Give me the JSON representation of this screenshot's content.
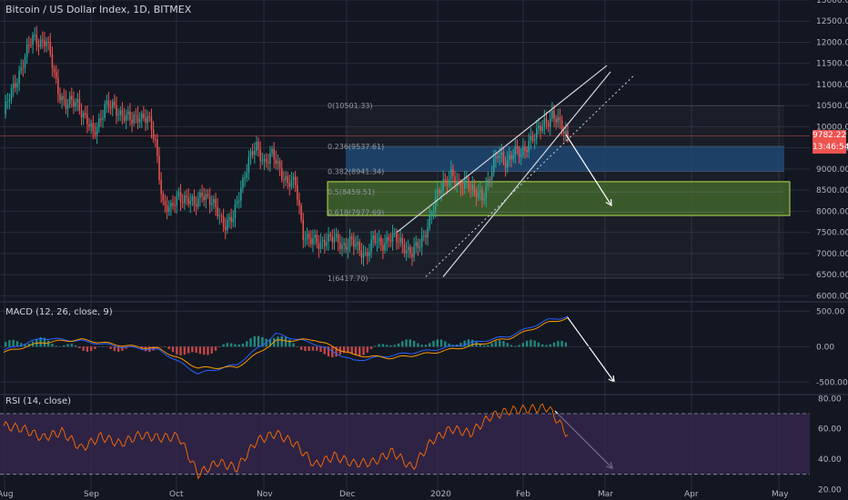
{
  "header": {
    "title": "Bitcoin / US Dollar Index, 1D, BITMEX"
  },
  "panes": {
    "macd_title": "MACD (12, 26, close, 9)",
    "rsi_title": "RSI (14, close)"
  },
  "price_label": "9782.22",
  "countdown_label": "13:46:54",
  "colors": {
    "bg": "#131722",
    "up": "#26a69a",
    "down": "#ef5350",
    "grid": "#2a2e39",
    "text": "#b2b5be",
    "blue_zone": "#1e4976",
    "green_zone": "#41642b",
    "rsi_band": "#3a2a52",
    "macd_line": "#2962ff",
    "signal_line": "#ff9800",
    "rsi_line": "#ff6d00"
  },
  "chart_data": [
    {
      "type": "candlestick",
      "title": "Bitcoin / US Dollar Index, 1D, BITMEX",
      "x_ticks": [
        "Aug",
        "Sep",
        "Oct",
        "Nov",
        "Dec",
        "2020",
        "Feb",
        "Mar",
        "Apr",
        "May"
      ],
      "y_ticks": [
        6000,
        6500,
        7000,
        7500,
        8000,
        8500,
        9000,
        9500,
        10000,
        10500,
        11000,
        11500,
        12000,
        12500,
        13000
      ],
      "ylim": [
        5900,
        13000
      ],
      "current_price": 9782.22,
      "close_path": [
        [
          0,
          10300
        ],
        [
          8,
          11300
        ],
        [
          15,
          12100
        ],
        [
          22,
          12000
        ],
        [
          28,
          10900
        ],
        [
          32,
          10500
        ],
        [
          38,
          10600
        ],
        [
          42,
          10200
        ],
        [
          46,
          9800
        ],
        [
          52,
          10500
        ],
        [
          58,
          10400
        ],
        [
          62,
          10300
        ],
        [
          66,
          10100
        ],
        [
          70,
          10300
        ],
        [
          74,
          10200
        ],
        [
          78,
          9600
        ],
        [
          82,
          8200
        ],
        [
          86,
          8000
        ],
        [
          90,
          8400
        ],
        [
          94,
          8300
        ],
        [
          98,
          8100
        ],
        [
          102,
          8500
        ],
        [
          106,
          8200
        ],
        [
          110,
          8000
        ],
        [
          114,
          7700
        ],
        [
          118,
          7800
        ],
        [
          122,
          8600
        ],
        [
          126,
          9200
        ],
        [
          130,
          9500
        ],
        [
          134,
          9200
        ],
        [
          138,
          9300
        ],
        [
          142,
          9000
        ],
        [
          146,
          8700
        ],
        [
          150,
          8600
        ],
        [
          154,
          7500
        ],
        [
          158,
          7300
        ],
        [
          162,
          7200
        ],
        [
          166,
          7400
        ],
        [
          170,
          7300
        ],
        [
          174,
          7200
        ],
        [
          178,
          7300
        ],
        [
          182,
          7100
        ],
        [
          186,
          7000
        ],
        [
          190,
          7300
        ],
        [
          194,
          7200
        ],
        [
          198,
          7400
        ],
        [
          202,
          7300
        ],
        [
          206,
          7200
        ],
        [
          210,
          7000
        ],
        [
          214,
          7200
        ],
        [
          218,
          7700
        ],
        [
          222,
          8200
        ],
        [
          226,
          8700
        ],
        [
          230,
          8900
        ],
        [
          234,
          8500
        ],
        [
          238,
          8800
        ],
        [
          242,
          8400
        ],
        [
          246,
          8300
        ],
        [
          250,
          8900
        ],
        [
          254,
          9300
        ],
        [
          258,
          9200
        ],
        [
          262,
          9400
        ],
        [
          266,
          9300
        ],
        [
          270,
          9700
        ],
        [
          274,
          9800
        ],
        [
          278,
          10100
        ],
        [
          282,
          10300
        ],
        [
          286,
          10000
        ],
        [
          290,
          9782
        ]
      ],
      "fibonacci_levels": [
        {
          "label": "0(10501.33)",
          "value": 10501.33
        },
        {
          "label": "0.236(9537.61)",
          "value": 9537.61
        },
        {
          "label": "0.382(8941.34)",
          "value": 8941.34
        },
        {
          "label": "0.5(8459.51)",
          "value": 8459.51
        },
        {
          "label": "0.618(7977.69)",
          "value": 7977.69
        },
        {
          "label": "1(6417.70)",
          "value": 6417.7
        }
      ]
    },
    {
      "type": "macd",
      "title": "MACD (12, 26, close, 9)",
      "y_ticks": [
        500,
        0,
        -500
      ],
      "ylim": [
        -650,
        620
      ],
      "macd_line": [
        [
          0,
          -50
        ],
        [
          20,
          120
        ],
        [
          40,
          80
        ],
        [
          60,
          0
        ],
        [
          80,
          -50
        ],
        [
          100,
          -380
        ],
        [
          120,
          -250
        ],
        [
          140,
          180
        ],
        [
          160,
          40
        ],
        [
          180,
          -200
        ],
        [
          200,
          -120
        ],
        [
          220,
          -50
        ],
        [
          240,
          50
        ],
        [
          260,
          150
        ],
        [
          280,
          380
        ],
        [
          290,
          420
        ]
      ],
      "signal_line": [
        [
          0,
          -80
        ],
        [
          20,
          60
        ],
        [
          40,
          100
        ],
        [
          60,
          20
        ],
        [
          80,
          -30
        ],
        [
          100,
          -300
        ],
        [
          120,
          -290
        ],
        [
          140,
          80
        ],
        [
          160,
          100
        ],
        [
          180,
          -120
        ],
        [
          200,
          -160
        ],
        [
          220,
          -90
        ],
        [
          240,
          10
        ],
        [
          260,
          120
        ],
        [
          280,
          340
        ],
        [
          290,
          400
        ]
      ]
    },
    {
      "type": "rsi",
      "title": "RSI (14, close)",
      "y_ticks": [
        80,
        60,
        40,
        20
      ],
      "ylim": [
        16,
        82
      ],
      "band": [
        30,
        70
      ],
      "values": [
        [
          0,
          62
        ],
        [
          10,
          60
        ],
        [
          20,
          54
        ],
        [
          30,
          58
        ],
        [
          40,
          47
        ],
        [
          50,
          55
        ],
        [
          60,
          50
        ],
        [
          70,
          56
        ],
        [
          80,
          54
        ],
        [
          90,
          55
        ],
        [
          100,
          30
        ],
        [
          110,
          38
        ],
        [
          120,
          34
        ],
        [
          130,
          52
        ],
        [
          140,
          57
        ],
        [
          150,
          50
        ],
        [
          160,
          36
        ],
        [
          170,
          42
        ],
        [
          180,
          37
        ],
        [
          190,
          38
        ],
        [
          200,
          45
        ],
        [
          210,
          34
        ],
        [
          220,
          52
        ],
        [
          230,
          60
        ],
        [
          240,
          57
        ],
        [
          250,
          68
        ],
        [
          260,
          72
        ],
        [
          270,
          73
        ],
        [
          280,
          74
        ],
        [
          290,
          56
        ]
      ]
    }
  ]
}
